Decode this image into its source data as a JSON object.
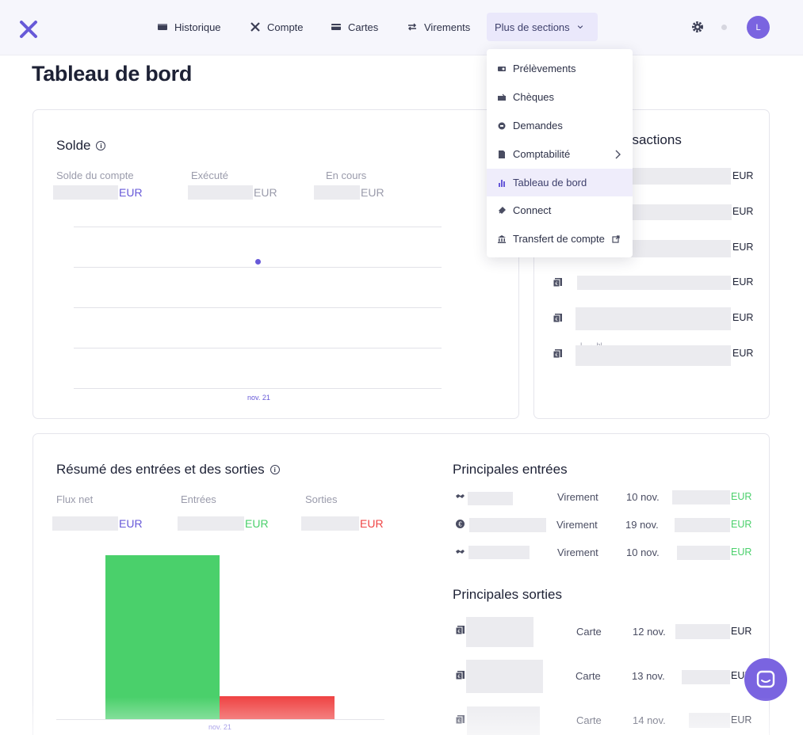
{
  "nav": {
    "items": [
      {
        "label": "Historique",
        "icon": "wallet-icon"
      },
      {
        "label": "Compte",
        "icon": "cross-arrows-icon"
      },
      {
        "label": "Cartes",
        "icon": "card-icon"
      },
      {
        "label": "Virements",
        "icon": "transfer-icon"
      },
      {
        "label": "Plus de sections",
        "icon": "chevron-down-icon"
      }
    ],
    "avatar_initial": "L"
  },
  "dropdown": {
    "items": [
      {
        "label": "Prélèvements",
        "icon": "direct-debit-icon"
      },
      {
        "label": "Chèques",
        "icon": "cheque-icon"
      },
      {
        "label": "Demandes",
        "icon": "request-icon"
      },
      {
        "label": "Comptabilité",
        "icon": "document-icon"
      },
      {
        "label": "Tableau de bord",
        "icon": "bar-chart-icon"
      },
      {
        "label": "Connect",
        "icon": "plug-icon"
      },
      {
        "label": "Transfert de compte",
        "icon": "bank-icon"
      }
    ]
  },
  "page": {
    "title": "Tableau de bord"
  },
  "balance": {
    "title": "Solde",
    "metrics": [
      {
        "label": "Solde du compte",
        "currency": "EUR"
      },
      {
        "label": "Exécuté",
        "currency": "EUR"
      },
      {
        "label": "En cours",
        "currency": "EUR"
      }
    ],
    "chart_xlabel": "nov. 21"
  },
  "transactions": {
    "title_visible": "nsactions",
    "currency": "EUR",
    "partial_text": "L...- .hl."
  },
  "summary": {
    "title": "Résumé des entrées et des sorties",
    "metrics": [
      {
        "label": "Flux net",
        "currency": "EUR"
      },
      {
        "label": "Entrées",
        "currency": "EUR"
      },
      {
        "label": "Sorties",
        "currency": "EUR"
      }
    ],
    "chart_xlabel": "nov. 21"
  },
  "top_in": {
    "title": "Principales entrées",
    "rows": [
      {
        "type": "Virement",
        "date": "10 nov.",
        "currency": "EUR"
      },
      {
        "type": "Virement",
        "date": "19 nov.",
        "currency": "EUR"
      },
      {
        "type": "Virement",
        "date": "10 nov.",
        "currency": "EUR"
      }
    ]
  },
  "top_out": {
    "title": "Principales sorties",
    "rows": [
      {
        "type": "Carte",
        "date": "12 nov.",
        "currency": "EUR"
      },
      {
        "type": "Carte",
        "date": "13 nov.",
        "currency": "EUR"
      },
      {
        "type": "Carte",
        "date": "14 nov.",
        "currency": "EUR"
      }
    ]
  },
  "colors": {
    "accent": "#6759d8",
    "green": "#4ad06b",
    "red": "#ef4444"
  },
  "chart_data": [
    {
      "type": "line",
      "x": [
        "nov. 21"
      ],
      "series": [
        {
          "values": [
            null
          ]
        }
      ],
      "xlabel": "",
      "ylabel": ""
    },
    {
      "type": "bar",
      "categories": [
        "nov. 21"
      ],
      "series": [
        {
          "name": "Entrées",
          "values": [
            null
          ],
          "relative_height": 1.0,
          "color": "#4ad06b"
        },
        {
          "name": "Sorties",
          "values": [
            null
          ],
          "relative_height": 0.14,
          "color": "#ef4444"
        }
      ]
    }
  ]
}
